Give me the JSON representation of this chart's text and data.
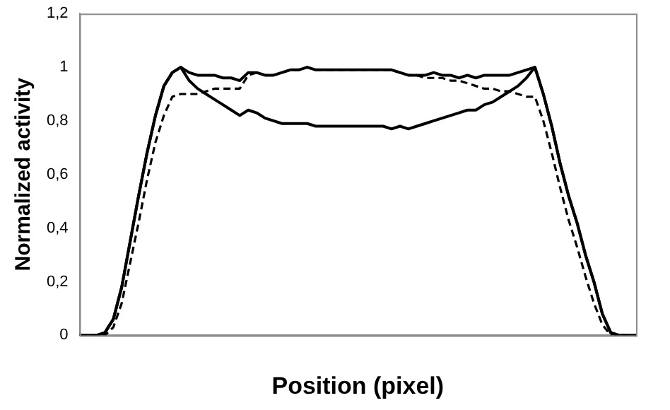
{
  "chart_data": {
    "type": "line",
    "xlabel": "Position (pixel)",
    "ylabel": "Normalized activity",
    "categories": [
      null,
      null,
      null,
      null,
      null,
      null,
      null,
      null,
      null,
      null,
      null,
      null,
      null,
      null,
      null,
      null,
      null,
      null,
      null,
      null,
      null,
      null,
      null,
      null,
      null,
      null,
      null,
      null,
      null,
      null,
      null,
      null,
      null,
      null,
      null,
      null,
      null,
      null,
      null,
      null,
      null,
      null,
      null,
      null,
      null,
      null,
      null,
      null,
      null,
      null,
      null,
      null,
      null,
      null,
      null,
      null,
      null,
      null,
      null,
      null,
      null,
      null,
      null,
      null,
      null,
      null,
      null
    ],
    "series": [
      {
        "color": "#000000",
        "line_style": "solid",
        "values": [
          0,
          0,
          0,
          0.01,
          0.06,
          0.18,
          0.35,
          0.52,
          0.68,
          0.82,
          0.93,
          0.98,
          1.0,
          0.98,
          0.97,
          0.97,
          0.97,
          0.96,
          0.96,
          0.95,
          0.98,
          0.98,
          0.97,
          0.97,
          0.98,
          0.99,
          0.99,
          1.0,
          0.99,
          0.99,
          0.99,
          0.99,
          0.99,
          0.99,
          0.99,
          0.99,
          0.99,
          0.99,
          0.98,
          0.97,
          0.97,
          0.97,
          0.98,
          0.97,
          0.97,
          0.96,
          0.97,
          0.96,
          0.97,
          0.97,
          0.97,
          0.97,
          0.98,
          0.99,
          1.0,
          0.9,
          0.78,
          0.64,
          0.52,
          0.42,
          0.3,
          0.2,
          0.08,
          0.01,
          0,
          0,
          0
        ]
      },
      {
        "color": "#000000",
        "line_style": "solid",
        "values": [
          0,
          0,
          0,
          0.01,
          0.06,
          0.18,
          0.35,
          0.52,
          0.68,
          0.82,
          0.93,
          0.98,
          1.0,
          0.95,
          0.92,
          0.9,
          0.88,
          0.86,
          0.84,
          0.82,
          0.84,
          0.83,
          0.81,
          0.8,
          0.79,
          0.79,
          0.79,
          0.79,
          0.78,
          0.78,
          0.78,
          0.78,
          0.78,
          0.78,
          0.78,
          0.78,
          0.78,
          0.77,
          0.78,
          0.77,
          0.78,
          0.79,
          0.8,
          0.81,
          0.82,
          0.83,
          0.84,
          0.84,
          0.86,
          0.87,
          0.89,
          0.91,
          0.93,
          0.96,
          1.0,
          0.9,
          0.78,
          0.64,
          0.52,
          0.42,
          0.3,
          0.2,
          0.08,
          0.01,
          0,
          0,
          0
        ]
      },
      {
        "color": "#000000",
        "line_style": "dashed",
        "values": [
          0,
          0,
          0,
          0,
          0.03,
          0.12,
          0.27,
          0.42,
          0.58,
          0.72,
          0.82,
          0.89,
          0.9,
          0.9,
          0.9,
          0.91,
          0.92,
          0.92,
          0.92,
          0.92,
          0.97,
          0.98,
          0.97,
          0.97,
          0.98,
          0.99,
          0.99,
          1.0,
          0.99,
          0.99,
          0.99,
          0.99,
          0.99,
          0.99,
          0.99,
          0.99,
          0.99,
          0.99,
          0.98,
          0.97,
          0.97,
          0.96,
          0.96,
          0.96,
          0.95,
          0.95,
          0.94,
          0.93,
          0.92,
          0.92,
          0.91,
          0.91,
          0.9,
          0.89,
          0.89,
          0.8,
          0.68,
          0.55,
          0.43,
          0.33,
          0.22,
          0.12,
          0.04,
          0,
          0,
          0,
          0
        ]
      }
    ],
    "ylim": [
      0,
      1.2
    ],
    "yticks": [
      0,
      {
        "value": 0.2,
        "label": "0,2"
      },
      {
        "value": 0.4,
        "label": "0,4"
      },
      {
        "value": 0.6,
        "label": "0,6"
      },
      {
        "value": 0.8,
        "label": "0,8"
      },
      1,
      {
        "value": 1.2,
        "label": "1,2"
      }
    ],
    "grid": false,
    "legend": false,
    "marker": "none"
  }
}
